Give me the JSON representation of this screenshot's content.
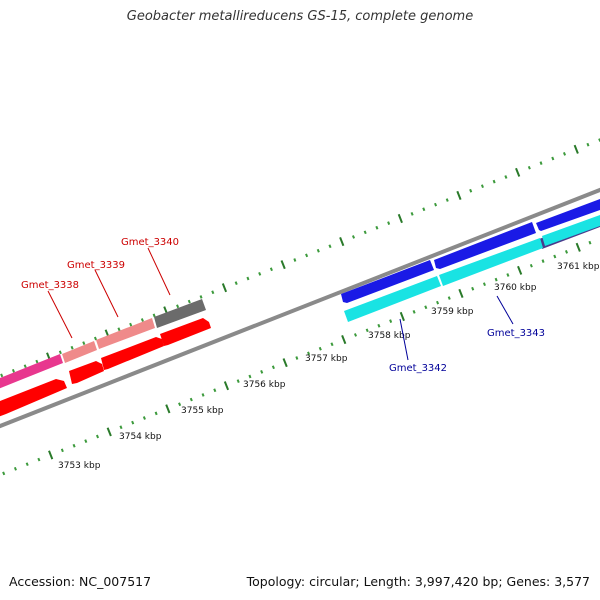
{
  "title": "Geobacter metallireducens GS-15, complete genome",
  "footer": {
    "accession": "Accession: NC_007517",
    "summary": "Topology: circular; Length: 3,997,420 bp; Genes: 3,577"
  },
  "colors": {
    "backbone": "#888888",
    "tick_major": "#2a7a2a",
    "tick_minor": "#3c9a3c",
    "label_forward": "#cc0000",
    "label_reverse": "#000099"
  },
  "kbp_labels": [
    "3753 kbp",
    "3754 kbp",
    "3755 kbp",
    "3756 kbp",
    "3757 kbp",
    "3758 kbp",
    "3759 kbp",
    "3760 kbp",
    "3761 kbp"
  ],
  "gene_labels": [
    {
      "name": "Gmet_3338",
      "color": "#cc0000"
    },
    {
      "name": "Gmet_3339",
      "color": "#cc0000"
    },
    {
      "name": "Gmet_3340",
      "color": "#cc0000"
    },
    {
      "name": "Gmet_3342",
      "color": "#000099"
    },
    {
      "name": "Gmet_3343",
      "color": "#000099"
    }
  ],
  "feature_colors": {
    "red_cds": "#ff0000",
    "magenta": "#e8378e",
    "pink": "#ef8a8a",
    "gray": "#6b6b6b",
    "blue": "#1a1ae6",
    "cyan": "#19e3e3",
    "purple": "#4a3b8c"
  }
}
